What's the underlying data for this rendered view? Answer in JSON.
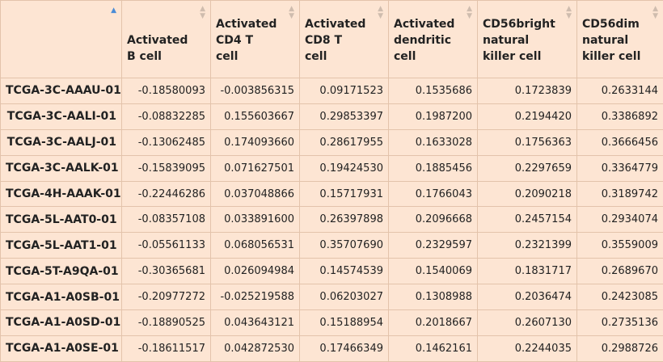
{
  "table": {
    "columns": [
      "",
      "Activated B cell",
      "Activated CD4 T cell",
      "Activated CD8 T cell",
      "Activated dendritic cell",
      "CD56bright natural killer cell",
      "CD56dim natural killer cell"
    ],
    "header_lines": [
      [],
      [
        "Activated",
        "B cell"
      ],
      [
        "Activated",
        "CD4 T",
        "cell"
      ],
      [
        "Activated",
        "CD8 T",
        "cell"
      ],
      [
        "Activated",
        "dendritic",
        "cell"
      ],
      [
        "CD56bright",
        "natural",
        "killer cell"
      ],
      [
        "CD56dim",
        "natural",
        "killer cell"
      ]
    ],
    "sort": {
      "column": 0,
      "direction": "ascending"
    },
    "rows": [
      {
        "name": "TCGA-3C-AAAU-01",
        "values": [
          "-0.18580093",
          "-0.003856315",
          "0.09171523",
          "0.1535686",
          "0.1723839",
          "0.2633144"
        ]
      },
      {
        "name": "TCGA-3C-AALI-01",
        "values": [
          "-0.08832285",
          "0.155603667",
          "0.29853397",
          "0.1987200",
          "0.2194420",
          "0.3386892"
        ]
      },
      {
        "name": "TCGA-3C-AALJ-01",
        "values": [
          "-0.13062485",
          "0.174093660",
          "0.28617955",
          "0.1633028",
          "0.1756363",
          "0.3666456"
        ]
      },
      {
        "name": "TCGA-3C-AALK-01",
        "values": [
          "-0.15839095",
          "0.071627501",
          "0.19424530",
          "0.1885456",
          "0.2297659",
          "0.3364779"
        ]
      },
      {
        "name": "TCGA-4H-AAAK-01",
        "values": [
          "-0.22446286",
          "0.037048866",
          "0.15717931",
          "0.1766043",
          "0.2090218",
          "0.3189742"
        ]
      },
      {
        "name": "TCGA-5L-AAT0-01",
        "values": [
          "-0.08357108",
          "0.033891600",
          "0.26397898",
          "0.2096668",
          "0.2457154",
          "0.2934074"
        ]
      },
      {
        "name": "TCGA-5L-AAT1-01",
        "values": [
          "-0.05561133",
          "0.068056531",
          "0.35707690",
          "0.2329597",
          "0.2321399",
          "0.3559009"
        ]
      },
      {
        "name": "TCGA-5T-A9QA-01",
        "values": [
          "-0.30365681",
          "0.026094984",
          "0.14574539",
          "0.1540069",
          "0.1831717",
          "0.2689670"
        ]
      },
      {
        "name": "TCGA-A1-A0SB-01",
        "values": [
          "-0.20977272",
          "-0.025219588",
          "0.06203027",
          "0.1308988",
          "0.2036474",
          "0.2423085"
        ]
      },
      {
        "name": "TCGA-A1-A0SD-01",
        "values": [
          "-0.18890525",
          "0.043643121",
          "0.15188954",
          "0.2018667",
          "0.2607130",
          "0.2735136"
        ]
      },
      {
        "name": "TCGA-A1-A0SE-01",
        "values": [
          "-0.18611517",
          "0.042872530",
          "0.17466349",
          "0.1462161",
          "0.2244035",
          "0.2988726"
        ]
      }
    ]
  }
}
